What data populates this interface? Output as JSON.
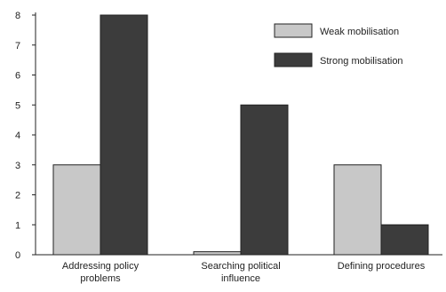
{
  "chart_data": {
    "type": "bar",
    "categories": [
      [
        "Addressing policy",
        "problems"
      ],
      [
        "Searching political",
        "influence"
      ],
      [
        "Defining procedures"
      ]
    ],
    "series": [
      {
        "name": "Weak mobilisation",
        "values": [
          3,
          0.1,
          3
        ],
        "color": "#c8c8c8"
      },
      {
        "name": "Strong mobilisation",
        "values": [
          8,
          5,
          1
        ],
        "color": "#3c3c3c"
      }
    ],
    "yticks": [
      "0",
      "1",
      "2",
      "3",
      "4",
      "5",
      "6",
      "7",
      "8"
    ],
    "ylim": [
      0,
      8
    ],
    "legend_position": "top-right",
    "grid": false
  }
}
